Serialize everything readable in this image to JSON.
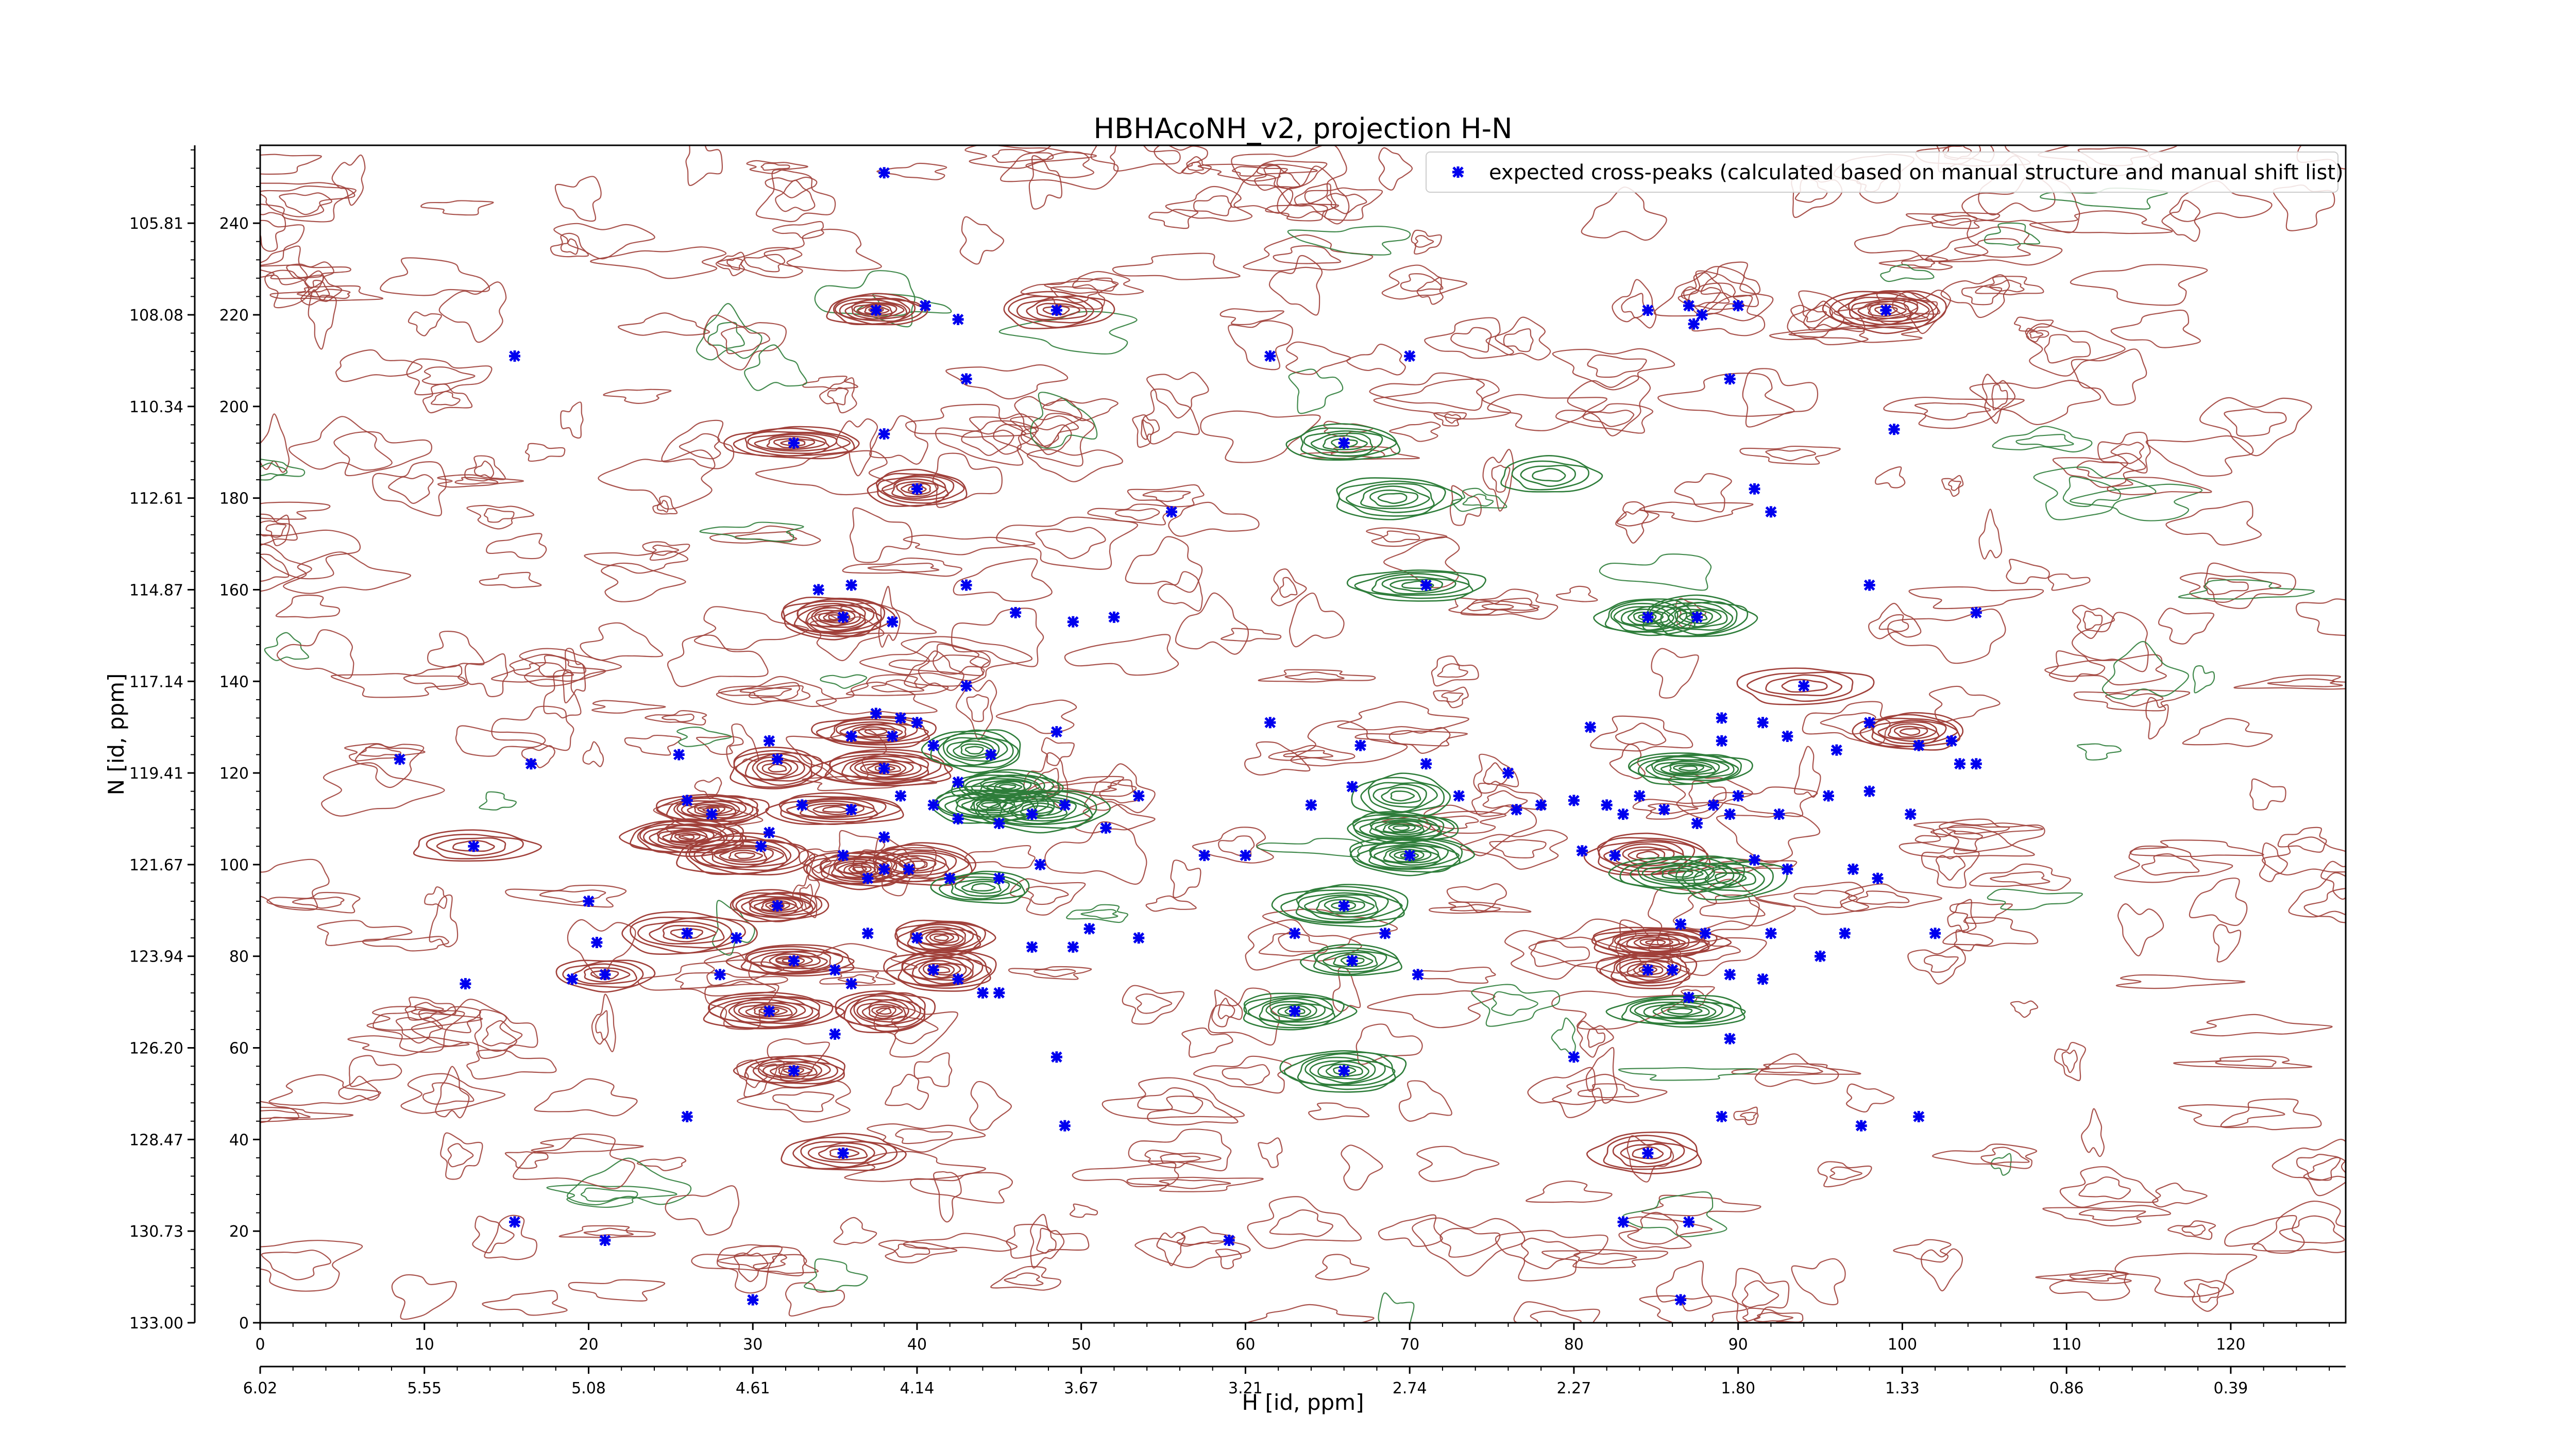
{
  "chart_data": {
    "type": "scatter",
    "title": "HBHAcoNH_v2, projection H-N",
    "xlabel": "H [id, ppm]",
    "ylabel": "N [id, ppm]",
    "xlim": [
      0,
      127
    ],
    "ylim": [
      0,
      257
    ],
    "x_ticks": [
      0,
      10,
      20,
      30,
      40,
      50,
      60,
      70,
      80,
      90,
      100,
      110,
      120
    ],
    "y_ticks": [
      0,
      20,
      40,
      60,
      80,
      100,
      120,
      140,
      160,
      180,
      200,
      220,
      240
    ],
    "x_ppm_ticks": [
      "6.02",
      "5.55",
      "5.08",
      "4.61",
      "4.14",
      "3.67",
      "3.21",
      "2.74",
      "2.27",
      "1.80",
      "1.33",
      "0.86",
      "0.39"
    ],
    "y_ppm_ticks": [
      "133.00",
      "130.73",
      "128.47",
      "126.20",
      "123.94",
      "121.67",
      "119.41",
      "117.14",
      "114.87",
      "112.61",
      "110.34",
      "108.08",
      "105.81"
    ],
    "legend": {
      "position": "top-right",
      "label": "expected cross-peaks (calculated based on manual structure and manual shift list)"
    },
    "colors": {
      "positive_contour": "#a0403a",
      "negative_contour": "#2e7d3a",
      "marker": "#0000ee"
    },
    "series": [
      {
        "name": "expected cross-peaks (calculated based on manual structure and manual shift list)",
        "points": [
          [
            38.0,
            251
          ],
          [
            15.5,
            211
          ],
          [
            37.5,
            221
          ],
          [
            40.5,
            222
          ],
          [
            42.5,
            219
          ],
          [
            48.5,
            221
          ],
          [
            43.0,
            206
          ],
          [
            61.5,
            211
          ],
          [
            70.0,
            211
          ],
          [
            84.5,
            221
          ],
          [
            87.0,
            222
          ],
          [
            87.3,
            218
          ],
          [
            87.8,
            220
          ],
          [
            90.0,
            222
          ],
          [
            89.5,
            206
          ],
          [
            99.0,
            221
          ],
          [
            38.0,
            194
          ],
          [
            32.5,
            192
          ],
          [
            66.0,
            192
          ],
          [
            99.5,
            195
          ],
          [
            40.0,
            182
          ],
          [
            55.5,
            177
          ],
          [
            91.0,
            182
          ],
          [
            92.0,
            177
          ],
          [
            34.0,
            160
          ],
          [
            36.0,
            161
          ],
          [
            43.0,
            161
          ],
          [
            71.0,
            161
          ],
          [
            98.0,
            161
          ],
          [
            35.5,
            154
          ],
          [
            38.5,
            153
          ],
          [
            46.0,
            155
          ],
          [
            49.5,
            153
          ],
          [
            52.0,
            154
          ],
          [
            84.5,
            154
          ],
          [
            87.5,
            154
          ],
          [
            104.5,
            155
          ],
          [
            43.0,
            139
          ],
          [
            94.0,
            139
          ],
          [
            8.5,
            123
          ],
          [
            16.5,
            122
          ],
          [
            25.5,
            124
          ],
          [
            31.0,
            127
          ],
          [
            36.0,
            128
          ],
          [
            38.5,
            128
          ],
          [
            37.5,
            133
          ],
          [
            39.0,
            132
          ],
          [
            40.0,
            131
          ],
          [
            31.5,
            123
          ],
          [
            38.0,
            121
          ],
          [
            41.0,
            126
          ],
          [
            44.5,
            124
          ],
          [
            42.5,
            118
          ],
          [
            48.5,
            129
          ],
          [
            61.5,
            131
          ],
          [
            67.0,
            126
          ],
          [
            71.0,
            122
          ],
          [
            81.0,
            130
          ],
          [
            89.0,
            132
          ],
          [
            89.0,
            127
          ],
          [
            91.5,
            131
          ],
          [
            93.0,
            128
          ],
          [
            96.0,
            125
          ],
          [
            98.0,
            131
          ],
          [
            101.0,
            126
          ],
          [
            103.0,
            127
          ],
          [
            103.5,
            122
          ],
          [
            104.5,
            122
          ],
          [
            26.0,
            114
          ],
          [
            27.5,
            111
          ],
          [
            31.0,
            107
          ],
          [
            33.0,
            113
          ],
          [
            36.0,
            112
          ],
          [
            38.0,
            106
          ],
          [
            39.0,
            115
          ],
          [
            41.0,
            113
          ],
          [
            42.5,
            110
          ],
          [
            45.0,
            109
          ],
          [
            47.0,
            111
          ],
          [
            49.0,
            113
          ],
          [
            51.5,
            108
          ],
          [
            53.5,
            115
          ],
          [
            64.0,
            113
          ],
          [
            66.5,
            117
          ],
          [
            73.0,
            115
          ],
          [
            76.0,
            120
          ],
          [
            76.5,
            112
          ],
          [
            78.0,
            113
          ],
          [
            80.0,
            114
          ],
          [
            82.0,
            113
          ],
          [
            83.0,
            111
          ],
          [
            84.0,
            115
          ],
          [
            85.5,
            112
          ],
          [
            87.5,
            109
          ],
          [
            88.5,
            113
          ],
          [
            89.5,
            111
          ],
          [
            90.0,
            115
          ],
          [
            92.5,
            111
          ],
          [
            95.5,
            115
          ],
          [
            98.0,
            116
          ],
          [
            100.5,
            111
          ],
          [
            13.0,
            104
          ],
          [
            20.0,
            92
          ],
          [
            30.5,
            104
          ],
          [
            35.5,
            102
          ],
          [
            37.0,
            97
          ],
          [
            38.0,
            99
          ],
          [
            39.5,
            99
          ],
          [
            42.0,
            97
          ],
          [
            45.0,
            97
          ],
          [
            47.5,
            100
          ],
          [
            57.5,
            102
          ],
          [
            60.0,
            102
          ],
          [
            70.0,
            102
          ],
          [
            80.5,
            103
          ],
          [
            82.5,
            102
          ],
          [
            91.0,
            101
          ],
          [
            93.0,
            99
          ],
          [
            97.0,
            99
          ],
          [
            98.5,
            97
          ],
          [
            31.5,
            91
          ],
          [
            26.0,
            85
          ],
          [
            20.5,
            83
          ],
          [
            29.0,
            84
          ],
          [
            37.0,
            85
          ],
          [
            40.0,
            84
          ],
          [
            47.0,
            82
          ],
          [
            49.5,
            82
          ],
          [
            50.5,
            86
          ],
          [
            53.5,
            84
          ],
          [
            63.0,
            85
          ],
          [
            66.0,
            91
          ],
          [
            68.5,
            85
          ],
          [
            86.5,
            87
          ],
          [
            88.0,
            85
          ],
          [
            92.0,
            85
          ],
          [
            96.5,
            85
          ],
          [
            102.0,
            85
          ],
          [
            32.5,
            79
          ],
          [
            35.0,
            77
          ],
          [
            28.0,
            76
          ],
          [
            21.0,
            76
          ],
          [
            19.0,
            75
          ],
          [
            12.5,
            74
          ],
          [
            36.0,
            74
          ],
          [
            41.0,
            77
          ],
          [
            42.5,
            75
          ],
          [
            45.0,
            72
          ],
          [
            66.5,
            79
          ],
          [
            70.5,
            76
          ],
          [
            84.5,
            77
          ],
          [
            86.0,
            77
          ],
          [
            89.5,
            76
          ],
          [
            91.5,
            75
          ],
          [
            95.0,
            80
          ],
          [
            31.0,
            68
          ],
          [
            44.0,
            72
          ],
          [
            63.0,
            68
          ],
          [
            87.0,
            71
          ],
          [
            35.0,
            63
          ],
          [
            32.5,
            55
          ],
          [
            48.5,
            58
          ],
          [
            66.0,
            55
          ],
          [
            80.0,
            58
          ],
          [
            89.5,
            62
          ],
          [
            26.0,
            45
          ],
          [
            49.0,
            43
          ],
          [
            89.0,
            45
          ],
          [
            97.5,
            43
          ],
          [
            101.0,
            45
          ],
          [
            35.5,
            37
          ],
          [
            84.5,
            37
          ],
          [
            15.5,
            22
          ],
          [
            21.0,
            18
          ],
          [
            59.0,
            18
          ],
          [
            83.0,
            22
          ],
          [
            87.0,
            22
          ],
          [
            30.0,
            5
          ],
          [
            86.5,
            5
          ]
        ]
      }
    ]
  }
}
